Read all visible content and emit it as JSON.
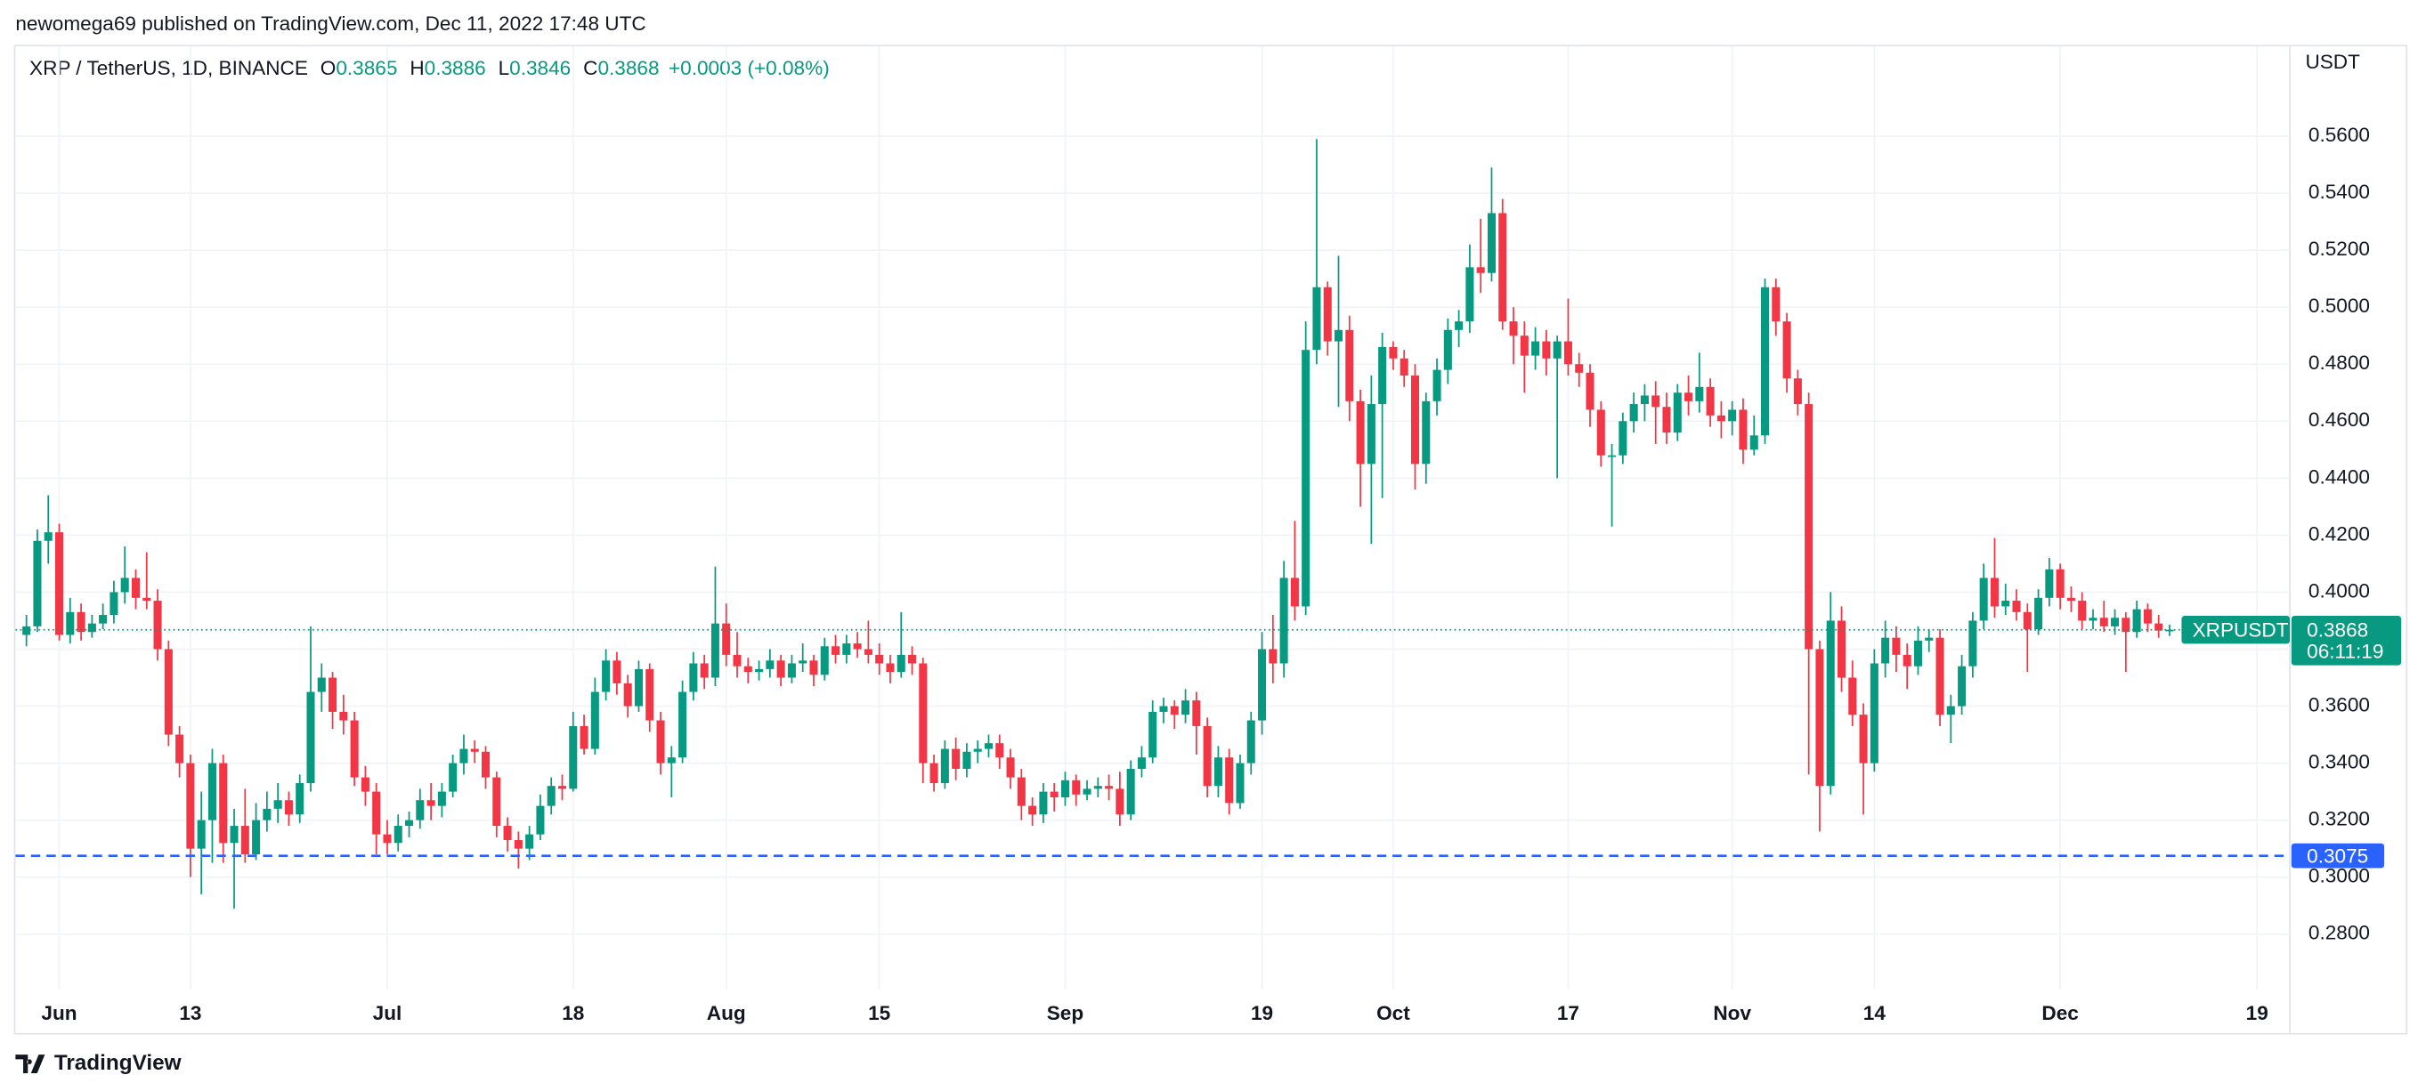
{
  "header": "newomega69 published on TradingView.com, Dec 11, 2022 17:48 UTC",
  "footer": "TradingView",
  "chart_data": {
    "type": "candlestick",
    "symbol": "XRP / TetherUS, 1D, BINANCE",
    "ohlc_labels": [
      "O",
      "H",
      "L",
      "C"
    ],
    "change": "+0.0003 (+0.08%)",
    "axis_unit": "USDT",
    "price_tag": "XRPUSDT",
    "countdown": "06:11:19",
    "level": 0.3075,
    "up_color": "#089981",
    "down_color": "#f23645",
    "level_color": "#2962ff",
    "grid": true,
    "xlim": [
      "2022-05-28",
      "2022-12-22"
    ],
    "xticks": [
      {
        "value": "2022-06-01",
        "label": "Jun"
      },
      {
        "value": "2022-06-13",
        "label": "13"
      },
      {
        "value": "2022-07-01",
        "label": "Jul"
      },
      {
        "value": "2022-07-18",
        "label": "18"
      },
      {
        "value": "2022-08-01",
        "label": "Aug"
      },
      {
        "value": "2022-08-15",
        "label": "15"
      },
      {
        "value": "2022-09-01",
        "label": "Sep"
      },
      {
        "value": "2022-09-19",
        "label": "19"
      },
      {
        "value": "2022-10-01",
        "label": "Oct"
      },
      {
        "value": "2022-10-17",
        "label": "17"
      },
      {
        "value": "2022-11-01",
        "label": "Nov"
      },
      {
        "value": "2022-11-14",
        "label": "14"
      },
      {
        "value": "2022-12-01",
        "label": "Dec"
      },
      {
        "value": "2022-12-19",
        "label": "19"
      }
    ],
    "ylim": [
      0.2605,
      0.5915
    ],
    "yticks": [
      {
        "value": 0.28,
        "label": "0.2800"
      },
      {
        "value": 0.3,
        "label": "0.3000"
      },
      {
        "value": 0.32,
        "label": "0.3200"
      },
      {
        "value": 0.34,
        "label": "0.3400"
      },
      {
        "value": 0.36,
        "label": "0.3600"
      },
      {
        "value": 0.38,
        "label": "0.3800"
      },
      {
        "value": 0.4,
        "label": "0.4000"
      },
      {
        "value": 0.42,
        "label": "0.4200"
      },
      {
        "value": 0.44,
        "label": "0.4400"
      },
      {
        "value": 0.46,
        "label": "0.4600"
      },
      {
        "value": 0.48,
        "label": "0.4800"
      },
      {
        "value": 0.5,
        "label": "0.5000"
      },
      {
        "value": 0.52,
        "label": "0.5200"
      },
      {
        "value": 0.54,
        "label": "0.5400"
      },
      {
        "value": 0.56,
        "label": "0.5600"
      }
    ],
    "x": [
      "2022-05-29",
      "2022-05-30",
      "2022-05-31",
      "2022-06-01",
      "2022-06-02",
      "2022-06-03",
      "2022-06-04",
      "2022-06-05",
      "2022-06-06",
      "2022-06-07",
      "2022-06-08",
      "2022-06-09",
      "2022-06-10",
      "2022-06-11",
      "2022-06-12",
      "2022-06-13",
      "2022-06-14",
      "2022-06-15",
      "2022-06-16",
      "2022-06-17",
      "2022-06-18",
      "2022-06-19",
      "2022-06-20",
      "2022-06-21",
      "2022-06-22",
      "2022-06-23",
      "2022-06-24",
      "2022-06-25",
      "2022-06-26",
      "2022-06-27",
      "2022-06-28",
      "2022-06-29",
      "2022-06-30",
      "2022-07-01",
      "2022-07-02",
      "2022-07-03",
      "2022-07-04",
      "2022-07-05",
      "2022-07-06",
      "2022-07-07",
      "2022-07-08",
      "2022-07-09",
      "2022-07-10",
      "2022-07-11",
      "2022-07-12",
      "2022-07-13",
      "2022-07-14",
      "2022-07-15",
      "2022-07-16",
      "2022-07-17",
      "2022-07-18",
      "2022-07-19",
      "2022-07-20",
      "2022-07-21",
      "2022-07-22",
      "2022-07-23",
      "2022-07-24",
      "2022-07-25",
      "2022-07-26",
      "2022-07-27",
      "2022-07-28",
      "2022-07-29",
      "2022-07-30",
      "2022-07-31",
      "2022-08-01",
      "2022-08-02",
      "2022-08-03",
      "2022-08-04",
      "2022-08-05",
      "2022-08-06",
      "2022-08-07",
      "2022-08-08",
      "2022-08-09",
      "2022-08-10",
      "2022-08-11",
      "2022-08-12",
      "2022-08-13",
      "2022-08-14",
      "2022-08-15",
      "2022-08-16",
      "2022-08-17",
      "2022-08-18",
      "2022-08-19",
      "2022-08-20",
      "2022-08-21",
      "2022-08-22",
      "2022-08-23",
      "2022-08-24",
      "2022-08-25",
      "2022-08-26",
      "2022-08-27",
      "2022-08-28",
      "2022-08-29",
      "2022-08-30",
      "2022-08-31",
      "2022-09-01",
      "2022-09-02",
      "2022-09-03",
      "2022-09-04",
      "2022-09-05",
      "2022-09-06",
      "2022-09-07",
      "2022-09-08",
      "2022-09-09",
      "2022-09-10",
      "2022-09-11",
      "2022-09-12",
      "2022-09-13",
      "2022-09-14",
      "2022-09-15",
      "2022-09-16",
      "2022-09-17",
      "2022-09-18",
      "2022-09-19",
      "2022-09-20",
      "2022-09-21",
      "2022-09-22",
      "2022-09-23",
      "2022-09-24",
      "2022-09-25",
      "2022-09-26",
      "2022-09-27",
      "2022-09-28",
      "2022-09-29",
      "2022-09-30",
      "2022-10-01",
      "2022-10-02",
      "2022-10-03",
      "2022-10-04",
      "2022-10-05",
      "2022-10-06",
      "2022-10-07",
      "2022-10-08",
      "2022-10-09",
      "2022-10-10",
      "2022-10-11",
      "2022-10-12",
      "2022-10-13",
      "2022-10-14",
      "2022-10-15",
      "2022-10-16",
      "2022-10-17",
      "2022-10-18",
      "2022-10-19",
      "2022-10-20",
      "2022-10-21",
      "2022-10-22",
      "2022-10-23",
      "2022-10-24",
      "2022-10-25",
      "2022-10-26",
      "2022-10-27",
      "2022-10-28",
      "2022-10-29",
      "2022-10-30",
      "2022-10-31",
      "2022-11-01",
      "2022-11-02",
      "2022-11-03",
      "2022-11-04",
      "2022-11-05",
      "2022-11-06",
      "2022-11-07",
      "2022-11-08",
      "2022-11-09",
      "2022-11-10",
      "2022-11-11",
      "2022-11-12",
      "2022-11-13",
      "2022-11-14",
      "2022-11-15",
      "2022-11-16",
      "2022-11-17",
      "2022-11-18",
      "2022-11-19",
      "2022-11-20",
      "2022-11-21",
      "2022-11-22",
      "2022-11-23",
      "2022-11-24",
      "2022-11-25",
      "2022-11-26",
      "2022-11-27",
      "2022-11-28",
      "2022-11-29",
      "2022-11-30",
      "2022-12-01",
      "2022-12-02",
      "2022-12-03",
      "2022-12-04",
      "2022-12-05",
      "2022-12-06",
      "2022-12-07",
      "2022-12-08",
      "2022-12-09",
      "2022-12-10",
      "2022-12-11"
    ],
    "open": [
      0.385,
      0.388,
      0.418,
      0.421,
      0.385,
      0.393,
      0.386,
      0.389,
      0.392,
      0.4,
      0.405,
      0.398,
      0.397,
      0.38,
      0.35,
      0.34,
      0.31,
      0.32,
      0.34,
      0.312,
      0.318,
      0.308,
      0.32,
      0.324,
      0.327,
      0.322,
      0.333,
      0.365,
      0.37,
      0.358,
      0.355,
      0.335,
      0.33,
      0.315,
      0.312,
      0.318,
      0.32,
      0.327,
      0.325,
      0.33,
      0.34,
      0.345,
      0.344,
      0.335,
      0.318,
      0.313,
      0.31,
      0.315,
      0.325,
      0.332,
      0.331,
      0.353,
      0.345,
      0.365,
      0.376,
      0.368,
      0.36,
      0.373,
      0.355,
      0.34,
      0.342,
      0.365,
      0.375,
      0.37,
      0.389,
      0.378,
      0.374,
      0.372,
      0.373,
      0.376,
      0.37,
      0.375,
      0.376,
      0.371,
      0.381,
      0.378,
      0.382,
      0.38,
      0.378,
      0.375,
      0.372,
      0.378,
      0.375,
      0.34,
      0.333,
      0.345,
      0.338,
      0.344,
      0.345,
      0.347,
      0.342,
      0.335,
      0.325,
      0.322,
      0.33,
      0.328,
      0.334,
      0.329,
      0.331,
      0.332,
      0.331,
      0.322,
      0.338,
      0.342,
      0.358,
      0.36,
      0.357,
      0.362,
      0.353,
      0.332,
      0.342,
      0.326,
      0.34,
      0.355,
      0.38,
      0.375,
      0.405,
      0.395,
      0.485,
      0.507,
      0.488,
      0.492,
      0.467,
      0.445,
      0.466,
      0.486,
      0.482,
      0.476,
      0.445,
      0.467,
      0.478,
      0.492,
      0.495,
      0.514,
      0.512,
      0.533,
      0.495,
      0.49,
      0.483,
      0.488,
      0.482,
      0.488,
      0.48,
      0.477,
      0.464,
      0.448,
      0.448,
      0.46,
      0.466,
      0.469,
      0.465,
      0.456,
      0.47,
      0.467,
      0.472,
      0.462,
      0.46,
      0.464,
      0.45,
      0.455,
      0.507,
      0.495,
      0.475,
      0.466,
      0.38,
      0.332,
      0.39,
      0.37,
      0.357,
      0.34,
      0.375,
      0.384,
      0.378,
      0.374,
      0.383,
      0.384,
      0.357,
      0.36,
      0.374,
      0.39,
      0.405,
      0.395,
      0.397,
      0.393,
      0.387,
      0.398,
      0.408,
      0.398,
      0.397,
      0.39,
      0.391,
      0.388,
      0.391,
      0.386,
      0.394,
      0.389,
      0.3865
    ],
    "high": [
      0.392,
      0.422,
      0.434,
      0.424,
      0.398,
      0.396,
      0.392,
      0.396,
      0.404,
      0.416,
      0.408,
      0.414,
      0.401,
      0.383,
      0.353,
      0.343,
      0.33,
      0.345,
      0.343,
      0.324,
      0.331,
      0.326,
      0.33,
      0.333,
      0.33,
      0.336,
      0.388,
      0.375,
      0.372,
      0.364,
      0.358,
      0.339,
      0.333,
      0.32,
      0.322,
      0.323,
      0.331,
      0.333,
      0.333,
      0.343,
      0.35,
      0.348,
      0.346,
      0.337,
      0.321,
      0.316,
      0.318,
      0.329,
      0.335,
      0.336,
      0.358,
      0.357,
      0.37,
      0.38,
      0.379,
      0.371,
      0.376,
      0.375,
      0.358,
      0.346,
      0.369,
      0.379,
      0.378,
      0.409,
      0.396,
      0.386,
      0.377,
      0.376,
      0.38,
      0.378,
      0.378,
      0.382,
      0.378,
      0.384,
      0.385,
      0.385,
      0.386,
      0.39,
      0.382,
      0.378,
      0.393,
      0.381,
      0.377,
      0.343,
      0.348,
      0.349,
      0.347,
      0.348,
      0.35,
      0.35,
      0.345,
      0.338,
      0.328,
      0.333,
      0.333,
      0.337,
      0.336,
      0.334,
      0.335,
      0.336,
      0.337,
      0.341,
      0.346,
      0.362,
      0.363,
      0.362,
      0.366,
      0.365,
      0.356,
      0.346,
      0.345,
      0.343,
      0.358,
      0.386,
      0.392,
      0.411,
      0.425,
      0.495,
      0.559,
      0.509,
      0.518,
      0.497,
      0.471,
      0.476,
      0.491,
      0.488,
      0.485,
      0.48,
      0.47,
      0.482,
      0.496,
      0.499,
      0.522,
      0.531,
      0.549,
      0.538,
      0.5,
      0.495,
      0.493,
      0.492,
      0.49,
      0.503,
      0.484,
      0.48,
      0.467,
      0.452,
      0.463,
      0.47,
      0.473,
      0.474,
      0.47,
      0.473,
      0.476,
      0.484,
      0.475,
      0.467,
      0.467,
      0.468,
      0.462,
      0.51,
      0.51,
      0.498,
      0.478,
      0.47,
      0.383,
      0.4,
      0.395,
      0.376,
      0.361,
      0.38,
      0.39,
      0.388,
      0.382,
      0.388,
      0.387,
      0.387,
      0.364,
      0.378,
      0.393,
      0.41,
      0.419,
      0.403,
      0.401,
      0.396,
      0.401,
      0.412,
      0.41,
      0.402,
      0.4,
      0.394,
      0.397,
      0.394,
      0.393,
      0.397,
      0.396,
      0.392,
      0.3886
    ],
    "low": [
      0.381,
      0.386,
      0.41,
      0.383,
      0.382,
      0.383,
      0.384,
      0.387,
      0.389,
      0.396,
      0.394,
      0.394,
      0.376,
      0.346,
      0.335,
      0.3,
      0.294,
      0.305,
      0.305,
      0.289,
      0.305,
      0.306,
      0.316,
      0.319,
      0.318,
      0.319,
      0.33,
      0.358,
      0.352,
      0.35,
      0.332,
      0.325,
      0.308,
      0.308,
      0.309,
      0.314,
      0.317,
      0.32,
      0.321,
      0.328,
      0.336,
      0.34,
      0.331,
      0.314,
      0.309,
      0.303,
      0.306,
      0.313,
      0.322,
      0.327,
      0.33,
      0.343,
      0.343,
      0.362,
      0.364,
      0.356,
      0.358,
      0.351,
      0.336,
      0.328,
      0.34,
      0.362,
      0.366,
      0.367,
      0.374,
      0.37,
      0.368,
      0.369,
      0.37,
      0.367,
      0.368,
      0.372,
      0.367,
      0.369,
      0.375,
      0.375,
      0.377,
      0.375,
      0.371,
      0.368,
      0.37,
      0.371,
      0.333,
      0.33,
      0.331,
      0.334,
      0.335,
      0.34,
      0.342,
      0.338,
      0.331,
      0.32,
      0.318,
      0.319,
      0.323,
      0.325,
      0.325,
      0.327,
      0.328,
      0.327,
      0.318,
      0.32,
      0.335,
      0.34,
      0.354,
      0.352,
      0.354,
      0.343,
      0.328,
      0.328,
      0.322,
      0.324,
      0.336,
      0.35,
      0.368,
      0.37,
      0.39,
      0.392,
      0.48,
      0.483,
      0.465,
      0.46,
      0.43,
      0.417,
      0.433,
      0.478,
      0.472,
      0.436,
      0.438,
      0.462,
      0.473,
      0.486,
      0.491,
      0.505,
      0.509,
      0.492,
      0.48,
      0.47,
      0.478,
      0.476,
      0.44,
      0.476,
      0.472,
      0.458,
      0.444,
      0.423,
      0.445,
      0.456,
      0.46,
      0.452,
      0.452,
      0.453,
      0.462,
      0.463,
      0.458,
      0.454,
      0.455,
      0.445,
      0.448,
      0.452,
      0.49,
      0.47,
      0.462,
      0.336,
      0.316,
      0.329,
      0.365,
      0.353,
      0.322,
      0.337,
      0.37,
      0.372,
      0.366,
      0.371,
      0.379,
      0.353,
      0.347,
      0.357,
      0.37,
      0.387,
      0.391,
      0.392,
      0.39,
      0.372,
      0.385,
      0.395,
      0.394,
      0.393,
      0.387,
      0.387,
      0.386,
      0.385,
      0.372,
      0.384,
      0.386,
      0.384,
      0.3846
    ],
    "close": [
      0.388,
      0.418,
      0.421,
      0.385,
      0.393,
      0.386,
      0.389,
      0.392,
      0.4,
      0.405,
      0.398,
      0.397,
      0.38,
      0.35,
      0.34,
      0.31,
      0.32,
      0.34,
      0.312,
      0.318,
      0.308,
      0.32,
      0.324,
      0.327,
      0.322,
      0.333,
      0.365,
      0.37,
      0.358,
      0.355,
      0.335,
      0.33,
      0.315,
      0.312,
      0.318,
      0.32,
      0.327,
      0.325,
      0.33,
      0.34,
      0.345,
      0.344,
      0.335,
      0.318,
      0.313,
      0.31,
      0.315,
      0.325,
      0.332,
      0.331,
      0.353,
      0.345,
      0.365,
      0.376,
      0.368,
      0.36,
      0.373,
      0.355,
      0.34,
      0.342,
      0.365,
      0.375,
      0.37,
      0.389,
      0.378,
      0.374,
      0.372,
      0.373,
      0.376,
      0.37,
      0.375,
      0.376,
      0.371,
      0.381,
      0.378,
      0.382,
      0.38,
      0.378,
      0.375,
      0.372,
      0.378,
      0.375,
      0.34,
      0.333,
      0.345,
      0.338,
      0.344,
      0.345,
      0.347,
      0.342,
      0.335,
      0.325,
      0.322,
      0.33,
      0.328,
      0.334,
      0.329,
      0.331,
      0.332,
      0.331,
      0.322,
      0.338,
      0.342,
      0.358,
      0.36,
      0.357,
      0.362,
      0.353,
      0.332,
      0.342,
      0.326,
      0.34,
      0.355,
      0.38,
      0.375,
      0.405,
      0.395,
      0.485,
      0.507,
      0.488,
      0.492,
      0.467,
      0.445,
      0.466,
      0.486,
      0.482,
      0.476,
      0.445,
      0.467,
      0.478,
      0.492,
      0.495,
      0.514,
      0.512,
      0.533,
      0.495,
      0.49,
      0.483,
      0.488,
      0.482,
      0.488,
      0.48,
      0.477,
      0.464,
      0.448,
      0.448,
      0.46,
      0.466,
      0.469,
      0.465,
      0.456,
      0.47,
      0.467,
      0.472,
      0.462,
      0.46,
      0.464,
      0.45,
      0.455,
      0.507,
      0.495,
      0.475,
      0.466,
      0.38,
      0.332,
      0.39,
      0.37,
      0.357,
      0.34,
      0.375,
      0.384,
      0.378,
      0.374,
      0.383,
      0.384,
      0.357,
      0.36,
      0.374,
      0.39,
      0.405,
      0.395,
      0.397,
      0.393,
      0.387,
      0.398,
      0.408,
      0.398,
      0.397,
      0.39,
      0.391,
      0.388,
      0.391,
      0.386,
      0.394,
      0.389,
      0.3865,
      0.3868
    ]
  }
}
